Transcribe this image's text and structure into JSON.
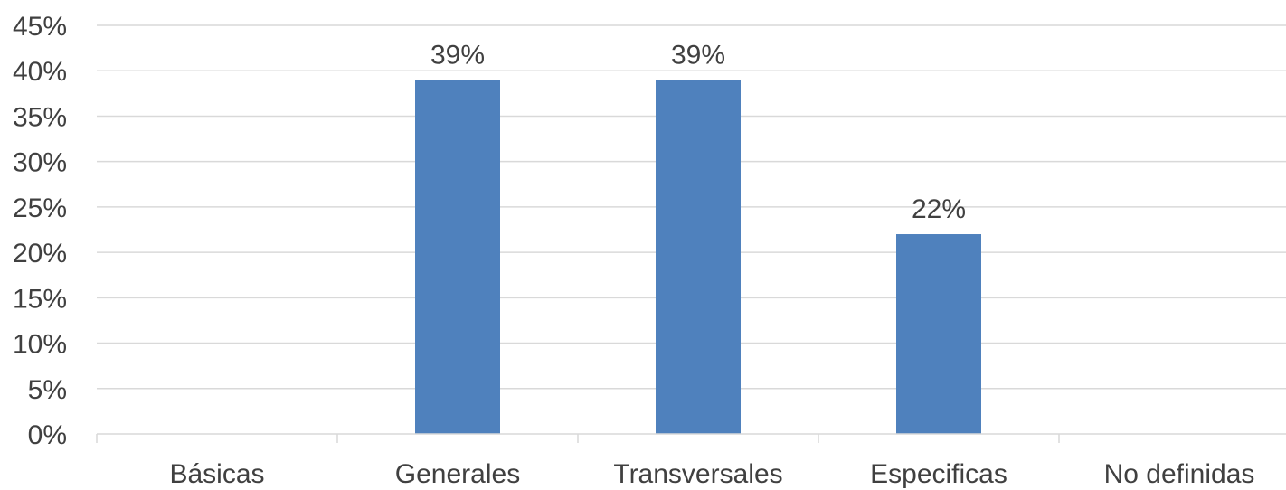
{
  "chart_data": {
    "type": "bar",
    "categories": [
      "Básicas",
      "Generales",
      "Transversales",
      "Especificas",
      "No definidas"
    ],
    "values": [
      0,
      39,
      39,
      22,
      0
    ],
    "data_labels": [
      "",
      "39%",
      "39%",
      "22%",
      ""
    ],
    "y_ticks": [
      "0%",
      "5%",
      "10%",
      "15%",
      "20%",
      "25%",
      "30%",
      "35%",
      "40%",
      "45%"
    ],
    "ylim": [
      0,
      45
    ],
    "grid": true,
    "legend": "none",
    "bar_color": "#4f81bd",
    "grid_color": "#d9d9d9"
  }
}
